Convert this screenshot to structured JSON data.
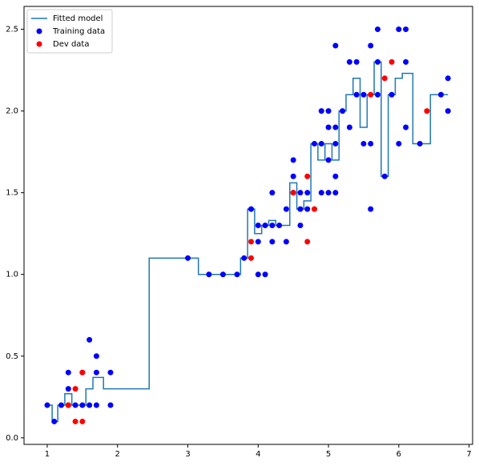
{
  "chart_data": {
    "type": "scatter",
    "xlim": [
      0.67,
      7.05
    ],
    "ylim": [
      -0.04,
      2.64
    ],
    "xticks": [
      1,
      2,
      3,
      4,
      5,
      6,
      7
    ],
    "yticks": [
      {
        "value": 0,
        "label": "0.0"
      },
      0.5,
      {
        "value": 1,
        "label": "1.0"
      },
      1.5,
      {
        "value": 2,
        "label": "2.0"
      },
      2.5
    ],
    "legend": "upper left",
    "series": [
      {
        "name": "Fitted model",
        "type": "line",
        "color": "#1f77b4",
        "x": [
          1.0,
          1.07,
          1.07,
          1.15,
          1.15,
          1.25,
          1.25,
          1.35,
          1.35,
          1.55,
          1.55,
          1.65,
          1.65,
          1.8,
          1.8,
          2.45,
          2.45,
          3.15,
          3.15,
          3.75,
          3.75,
          3.85,
          3.85,
          3.95,
          3.95,
          4.05,
          4.05,
          4.15,
          4.15,
          4.25,
          4.25,
          4.45,
          4.45,
          4.55,
          4.55,
          4.65,
          4.65,
          4.75,
          4.75,
          4.85,
          4.85,
          4.95,
          4.95,
          5.05,
          5.05,
          5.15,
          5.15,
          5.25,
          5.25,
          5.35,
          5.35,
          5.45,
          5.45,
          5.55,
          5.55,
          5.65,
          5.65,
          5.75,
          5.75,
          5.85,
          5.85,
          5.95,
          5.95,
          6.05,
          6.05,
          6.2,
          6.2,
          6.45,
          6.45,
          6.7
        ],
        "y": [
          0.2,
          0.2,
          0.1,
          0.1,
          0.2,
          0.2,
          0.27,
          0.27,
          0.2,
          0.2,
          0.3,
          0.3,
          0.37,
          0.37,
          0.3,
          0.3,
          1.1,
          1.1,
          1.0,
          1.0,
          1.1,
          1.1,
          1.4,
          1.4,
          1.25,
          1.25,
          1.3,
          1.3,
          1.33,
          1.33,
          1.3,
          1.3,
          1.56,
          1.56,
          1.4,
          1.4,
          1.45,
          1.45,
          1.8,
          1.8,
          1.7,
          1.7,
          1.8,
          1.8,
          1.7,
          1.7,
          2.0,
          2.0,
          2.1,
          2.1,
          2.2,
          2.2,
          1.9,
          1.9,
          2.1,
          2.1,
          2.3,
          2.3,
          1.6,
          1.6,
          2.1,
          2.1,
          2.2,
          2.2,
          2.23,
          2.23,
          1.8,
          1.8,
          2.1,
          2.1
        ]
      },
      {
        "name": "Training data",
        "type": "scatter",
        "color": "#0000ff",
        "x": [
          1.0,
          1.1,
          1.2,
          1.3,
          1.3,
          1.3,
          1.4,
          1.5,
          1.5,
          1.6,
          1.6,
          1.7,
          1.7,
          1.7,
          1.9,
          1.9,
          3.0,
          3.3,
          3.5,
          3.7,
          3.8,
          3.9,
          4.0,
          4.0,
          4.0,
          4.1,
          4.1,
          4.2,
          4.2,
          4.2,
          4.3,
          4.4,
          4.4,
          4.5,
          4.5,
          4.5,
          4.6,
          4.6,
          4.6,
          4.7,
          4.7,
          4.8,
          4.9,
          4.9,
          4.9,
          5.0,
          5.0,
          5.0,
          5.0,
          5.1,
          5.1,
          5.1,
          5.1,
          5.1,
          5.2,
          5.3,
          5.3,
          5.4,
          5.4,
          5.5,
          5.5,
          5.6,
          5.6,
          5.6,
          5.7,
          5.7,
          5.7,
          5.8,
          5.9,
          6.0,
          6.0,
          6.1,
          6.1,
          6.1,
          6.3,
          6.6,
          6.7,
          6.7
        ],
        "y": [
          0.2,
          0.1,
          0.2,
          0.2,
          0.3,
          0.4,
          0.2,
          0.2,
          0.4,
          0.2,
          0.6,
          0.2,
          0.4,
          0.5,
          0.2,
          0.4,
          1.1,
          1.0,
          1.0,
          1.0,
          1.1,
          1.4,
          1.0,
          1.2,
          1.3,
          1.0,
          1.3,
          1.2,
          1.3,
          1.5,
          1.3,
          1.2,
          1.4,
          1.5,
          1.6,
          1.7,
          1.3,
          1.4,
          1.5,
          1.4,
          1.5,
          1.8,
          1.5,
          1.8,
          2.0,
          1.5,
          1.7,
          1.9,
          2.0,
          1.5,
          1.6,
          1.8,
          1.9,
          2.4,
          2.0,
          1.9,
          2.3,
          2.1,
          2.3,
          1.8,
          2.1,
          1.4,
          1.8,
          2.4,
          2.1,
          2.3,
          2.5,
          1.6,
          2.1,
          1.8,
          2.5,
          1.9,
          2.3,
          2.5,
          1.8,
          2.1,
          2.0,
          2.2
        ]
      },
      {
        "name": "Dev data",
        "type": "scatter",
        "color": "#ff0000",
        "x": [
          1.3,
          1.4,
          1.4,
          1.5,
          1.5,
          3.9,
          3.9,
          4.5,
          4.7,
          4.7,
          4.8,
          5.6,
          5.8,
          5.9,
          6.4
        ],
        "y": [
          0.2,
          0.3,
          0.1,
          0.1,
          0.4,
          1.2,
          1.1,
          1.5,
          1.6,
          1.2,
          1.4,
          2.1,
          2.2,
          2.3,
          2.0
        ]
      }
    ]
  }
}
